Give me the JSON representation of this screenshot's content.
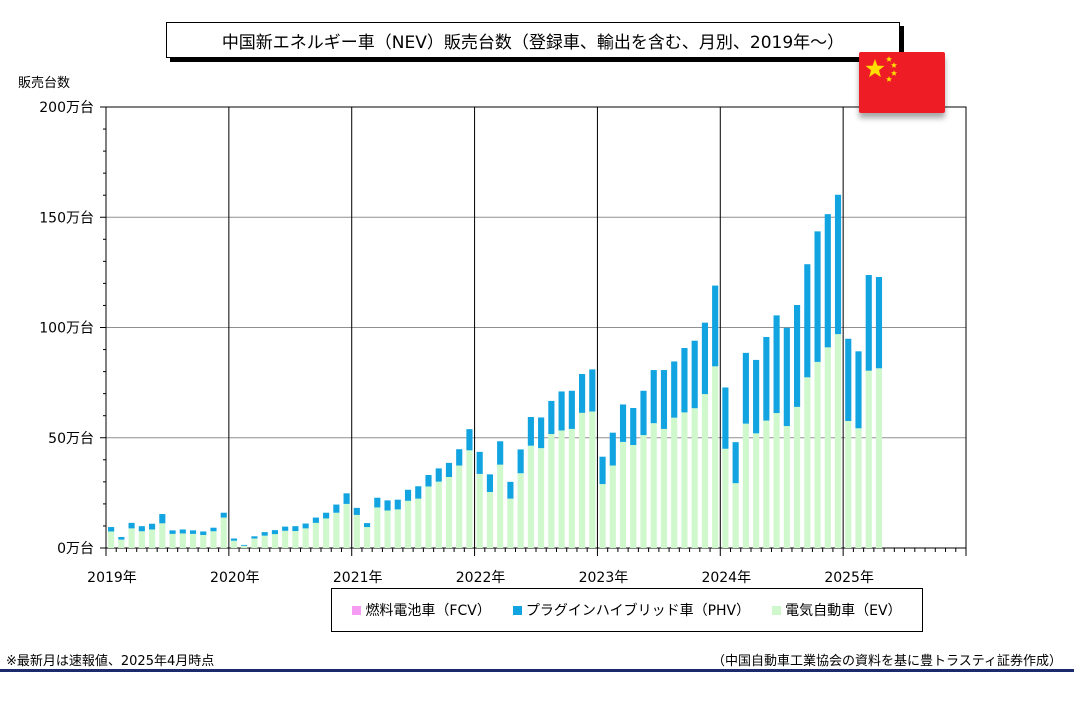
{
  "title": "中国新エネルギー車（NEV）販売台数（登録車、輸出を含む、月別、2019年～）",
  "flag_icon": "china-flag-icon",
  "colors": {
    "fcv": "#f79cf3",
    "phv": "#12a4e0",
    "ev": "#cff8cc",
    "grid": "#909090",
    "rule": "#1b2a6b",
    "flag_red": "#ee1c25",
    "flag_star": "#ffde00"
  },
  "legend": [
    {
      "key": "fcv",
      "label": "燃料電池車（FCV）"
    },
    {
      "key": "phv",
      "label": "プラグインハイブリッド車（PHV）"
    },
    {
      "key": "ev",
      "label": "電気自動車（EV）"
    }
  ],
  "note": "※最新月は速報値、2025年4月時点",
  "source": "（中国自動車工業協会の資料を基に豊トラスティ証券作成）",
  "chart_data": {
    "type": "bar",
    "stacked": true,
    "ylabel": "販売台数",
    "ylim": [
      0,
      200
    ],
    "y_ticks": [
      0,
      50,
      100,
      150,
      200
    ],
    "y_tick_labels": [
      "0万台",
      "50万台",
      "100万台",
      "150万台",
      "200万台"
    ],
    "x_year_labels": [
      "2019年",
      "2020年",
      "2021年",
      "2022年",
      "2023年",
      "2024年",
      "2025年"
    ],
    "months_on_axis": 84,
    "grid": true,
    "legend_position": "bottom",
    "series": [
      {
        "name": "燃料電池車（FCV）",
        "key": "fcv",
        "values": [
          0,
          0,
          0,
          0,
          0,
          0,
          0,
          0,
          0,
          0,
          0,
          0,
          0,
          0,
          0,
          0,
          0,
          0,
          0,
          0,
          0,
          0,
          0,
          0,
          0,
          0,
          0,
          0,
          0,
          0,
          0,
          0,
          0,
          0,
          0,
          0,
          0,
          0,
          0,
          0,
          0,
          0,
          0,
          0,
          0,
          0,
          0,
          0,
          0,
          0,
          0,
          0,
          0,
          0,
          0,
          0,
          0,
          0,
          0,
          0,
          0,
          0,
          0,
          0,
          0,
          0,
          0,
          0,
          0,
          0,
          0,
          0,
          0,
          0,
          0,
          0
        ]
      },
      {
        "name": "電気自動車（EV）",
        "key": "ev",
        "values": [
          7.5,
          3.8,
          8.9,
          7.6,
          8.4,
          11.2,
          6.4,
          6.6,
          6.4,
          5.9,
          7.6,
          13.8,
          3.3,
          1.0,
          4.3,
          5.6,
          6.3,
          7.8,
          7.7,
          8.9,
          11.4,
          13.4,
          16.0,
          20.0,
          15.0,
          9.5,
          18.4,
          17.0,
          17.5,
          21.4,
          22.4,
          27.9,
          30.1,
          32.2,
          37.4,
          44.3,
          33.6,
          25.4,
          37.8,
          22.4,
          33.9,
          46.4,
          45.3,
          51.7,
          53.3,
          54.0,
          61.3,
          61.9,
          29.0,
          37.4,
          48.1,
          46.7,
          51.2,
          56.6,
          54.0,
          59.1,
          61.5,
          63.4,
          69.8,
          82.4,
          45.0,
          29.4,
          56.4,
          52.0,
          57.8,
          61.2,
          55.3,
          64.0,
          77.4,
          84.4,
          91.0,
          97.0,
          57.6,
          54.3,
          80.4,
          81.5
        ]
      },
      {
        "name": "プラグインハイブリッド車（PHV）",
        "key": "phv",
        "values": [
          2.0,
          1.2,
          2.5,
          2.3,
          2.6,
          4.2,
          1.6,
          1.8,
          1.6,
          1.6,
          1.6,
          2.2,
          1.0,
          0.4,
          1.0,
          1.6,
          1.8,
          1.9,
          2.2,
          2.2,
          2.4,
          2.6,
          3.7,
          4.8,
          3.2,
          1.8,
          4.4,
          4.6,
          4.4,
          5.0,
          5.6,
          5.2,
          6.0,
          6.4,
          7.4,
          9.6,
          10.0,
          8.0,
          10.6,
          7.6,
          10.8,
          13.0,
          13.9,
          15.0,
          17.7,
          17.3,
          17.6,
          19.1,
          12.4,
          14.9,
          17.0,
          16.8,
          20.1,
          24.1,
          26.7,
          25.5,
          29.2,
          30.6,
          32.4,
          36.6,
          27.8,
          18.6,
          32.1,
          33.3,
          37.9,
          44.3,
          44.6,
          46.2,
          51.3,
          59.2,
          60.4,
          63.2,
          37.3,
          34.9,
          43.4,
          41.4
        ]
      }
    ]
  }
}
